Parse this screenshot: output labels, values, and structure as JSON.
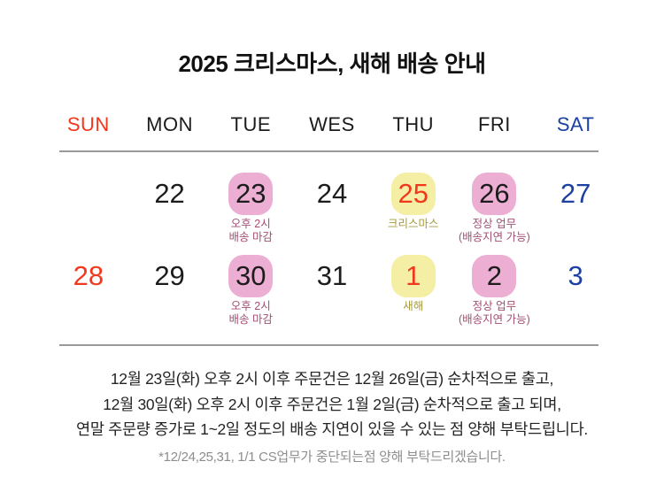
{
  "page": {
    "title": "2025 크리스마스, 새해 배송 안내"
  },
  "calendar": {
    "weekdays": [
      {
        "label": "SUN"
      },
      {
        "label": "MON"
      },
      {
        "label": "TUE"
      },
      {
        "label": "WES"
      },
      {
        "label": "THU"
      },
      {
        "label": "FRI"
      },
      {
        "label": "SAT"
      }
    ],
    "weeks": [
      [
        {
          "day": ""
        },
        {
          "day": "22"
        },
        {
          "day": "23",
          "badge": "pink",
          "labels": [
            "오후 2시",
            "배송 마감"
          ]
        },
        {
          "day": "24"
        },
        {
          "day": "25",
          "badge": "yellow",
          "labels": [
            "크리스마스"
          ]
        },
        {
          "day": "26",
          "badge": "pink",
          "labels": [
            "정상 업무",
            "(배송지연 가능)"
          ]
        },
        {
          "day": "27"
        }
      ],
      [
        {
          "day": "28"
        },
        {
          "day": "29"
        },
        {
          "day": "30",
          "badge": "pink",
          "labels": [
            "오후 2시",
            "배송 마감"
          ]
        },
        {
          "day": "31"
        },
        {
          "day": "1",
          "badge": "yellow",
          "labels": [
            "새해"
          ]
        },
        {
          "day": "2",
          "badge": "pink",
          "labels": [
            "정상 업무",
            "(배송지연 가능)"
          ]
        },
        {
          "day": "3"
        }
      ]
    ]
  },
  "notice": {
    "lines": [
      "12월 23일(화) 오후 2시 이후 주문건은 12월 26일(금) 순차적으로 출고,",
      "12월 30일(화) 오후 2시 이후 주문건은 1월 2일(금) 순차적으로 출고 되며,",
      "연말 주문량 증가로 1~2일 정도의 배송 지연이 있을 수 있는 점 양해 부탁드립니다."
    ],
    "footnote": "*12/24,25,31, 1/1 CS업무가 중단되는점 양해 부탁드리겠습니다."
  },
  "colors": {
    "sunday_red": "#f2381c",
    "saturday_blue": "#1d40a3",
    "pink_badge": "#ecaed2",
    "yellow_badge": "#f5efa5",
    "rose_label": "#a34e74",
    "olive_label": "#a59a3f",
    "divider_gray": "#999999"
  }
}
